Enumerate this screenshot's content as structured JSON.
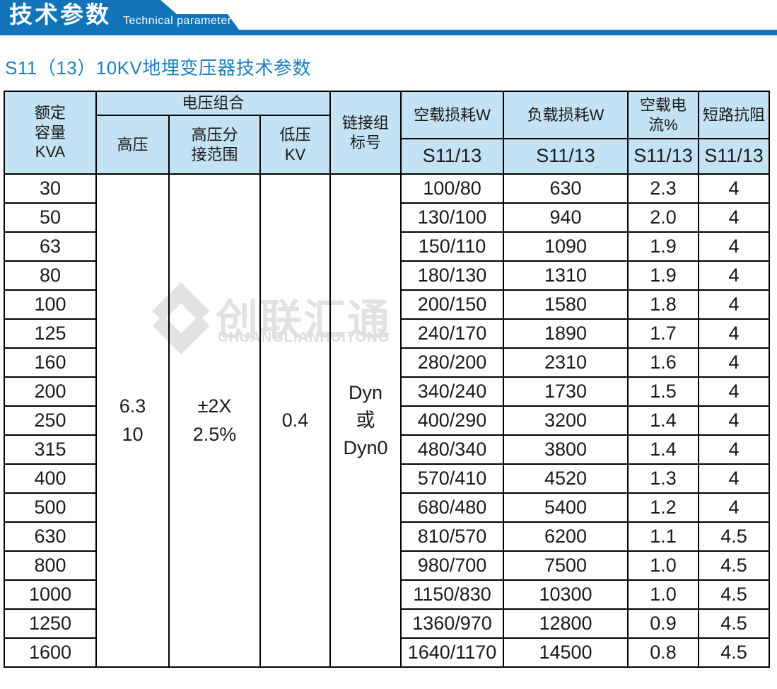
{
  "banner": {
    "title_zh": "技术参数",
    "title_en": "Technical parameter",
    "color": "#1173b8"
  },
  "page_title": "S11（13）10KV地埋变压器技术参数",
  "watermark": {
    "logo_icon": "diamond-chevron-logo",
    "name_zh": "创联汇通",
    "name_en": "CHUANGLIANHUITONG"
  },
  "table": {
    "header": {
      "rated_capacity": "额定\n容量\nKVA",
      "voltage_combo": "电压组合",
      "hv": "高压",
      "hv_tap": "高压分\n接范围",
      "lv": "低压\nKV",
      "connection": "链接组\n标号",
      "no_load_loss": "空载损耗W",
      "load_loss": "负载损耗W",
      "no_load_current": "空载电流%",
      "impedance": "短路抗阻",
      "model": "S11/13"
    },
    "merged": {
      "hv": "6.3\n10",
      "hv_tap": "±2X\n2.5%",
      "lv": "0.4",
      "connection": "Dyn\n或\nDyn0"
    },
    "rows": [
      {
        "kva": "30",
        "no_load_loss": "100/80",
        "load_loss": "630",
        "no_load_current": "2.3",
        "impedance": "4"
      },
      {
        "kva": "50",
        "no_load_loss": "130/100",
        "load_loss": "940",
        "no_load_current": "2.0",
        "impedance": "4"
      },
      {
        "kva": "63",
        "no_load_loss": "150/110",
        "load_loss": "1090",
        "no_load_current": "1.9",
        "impedance": "4"
      },
      {
        "kva": "80",
        "no_load_loss": "180/130",
        "load_loss": "1310",
        "no_load_current": "1.9",
        "impedance": "4"
      },
      {
        "kva": "100",
        "no_load_loss": "200/150",
        "load_loss": "1580",
        "no_load_current": "1.8",
        "impedance": "4"
      },
      {
        "kva": "125",
        "no_load_loss": "240/170",
        "load_loss": "1890",
        "no_load_current": "1.7",
        "impedance": "4"
      },
      {
        "kva": "160",
        "no_load_loss": "280/200",
        "load_loss": "2310",
        "no_load_current": "1.6",
        "impedance": "4"
      },
      {
        "kva": "200",
        "no_load_loss": "340/240",
        "load_loss": "1730",
        "no_load_current": "1.5",
        "impedance": "4"
      },
      {
        "kva": "250",
        "no_load_loss": "400/290",
        "load_loss": "3200",
        "no_load_current": "1.4",
        "impedance": "4"
      },
      {
        "kva": "315",
        "no_load_loss": "480/340",
        "load_loss": "3800",
        "no_load_current": "1.4",
        "impedance": "4"
      },
      {
        "kva": "400",
        "no_load_loss": "570/410",
        "load_loss": "4520",
        "no_load_current": "1.3",
        "impedance": "4"
      },
      {
        "kva": "500",
        "no_load_loss": "680/480",
        "load_loss": "5400",
        "no_load_current": "1.2",
        "impedance": "4"
      },
      {
        "kva": "630",
        "no_load_loss": "810/570",
        "load_loss": "6200",
        "no_load_current": "1.1",
        "impedance": "4.5"
      },
      {
        "kva": "800",
        "no_load_loss": "980/700",
        "load_loss": "7500",
        "no_load_current": "1.0",
        "impedance": "4.5"
      },
      {
        "kva": "1000",
        "no_load_loss": "1150/830",
        "load_loss": "10300",
        "no_load_current": "1.0",
        "impedance": "4.5"
      },
      {
        "kva": "1250",
        "no_load_loss": "1360/970",
        "load_loss": "12800",
        "no_load_current": "0.9",
        "impedance": "4.5"
      },
      {
        "kva": "1600",
        "no_load_loss": "1640/1170",
        "load_loss": "14500",
        "no_load_current": "0.8",
        "impedance": "4.5"
      }
    ]
  }
}
